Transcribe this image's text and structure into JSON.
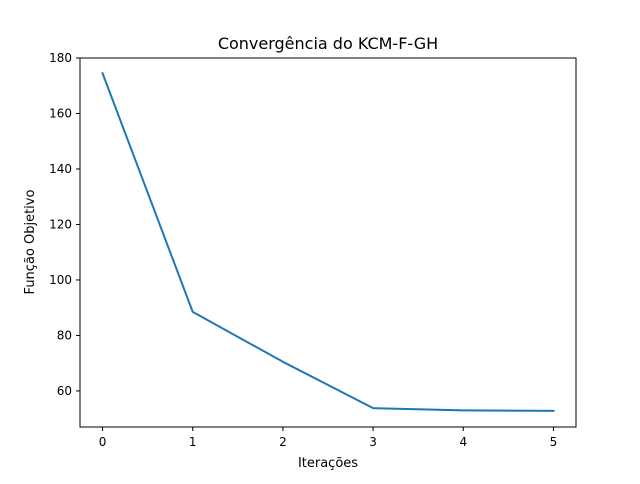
{
  "chart_data": {
    "type": "line",
    "title": "Convergência do KCM-F-GH",
    "xlabel": "Iterações",
    "ylabel": "Função Objetivo",
    "x": [
      0,
      1,
      2,
      3,
      4,
      5
    ],
    "series": [
      {
        "values": [
          174.5,
          88.5,
          70.5,
          53.8,
          53.0,
          52.8
        ],
        "color": "#1f77b4"
      }
    ],
    "xlim": [
      -0.25,
      5.25
    ],
    "ylim": [
      47,
      180
    ],
    "xticks": [
      "0",
      "1",
      "2",
      "3",
      "4",
      "5"
    ],
    "yticks": [
      "60",
      "80",
      "100",
      "120",
      "140",
      "160",
      "180"
    ],
    "grid": false
  }
}
